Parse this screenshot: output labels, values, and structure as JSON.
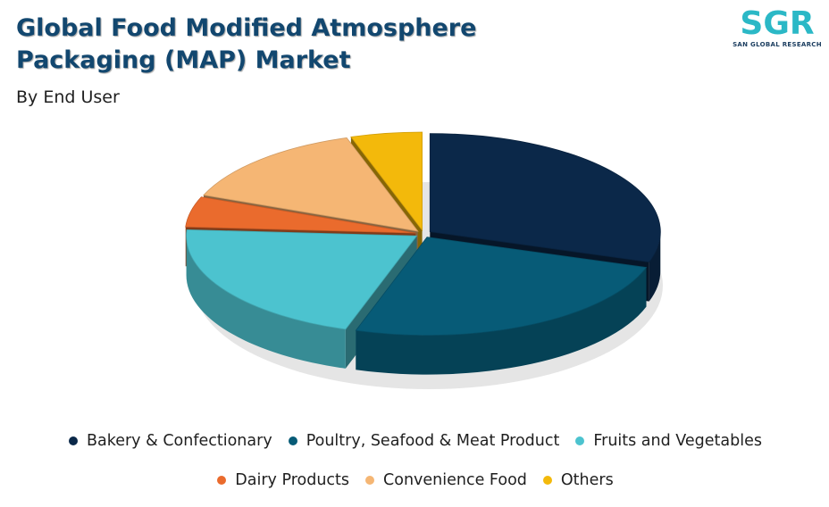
{
  "header": {
    "title": "Global Food Modified Atmosphere Packaging (MAP) Market",
    "subtitle": "By End User"
  },
  "logo": {
    "mark": "SGR",
    "caption": "SAN GLOBAL RESEARCH",
    "colors": [
      "#2bb8c6",
      "#1b3d5f"
    ]
  },
  "chart_data": {
    "type": "pie",
    "subtitle": "By End User",
    "title": "Global Food Modified Atmosphere Packaging (MAP) Market",
    "legend_position": "bottom",
    "style": "3d-exploded",
    "categories": [
      "Bakery & Confectionary",
      "Poultry, Seafood & Meat Product",
      "Fruits and Vegetables",
      "Dairy Products",
      "Convenience Food",
      "Others"
    ],
    "values": [
      30,
      25,
      21,
      5,
      14,
      5
    ],
    "colors": [
      "#0b2849",
      "#075b77",
      "#4cc3cf",
      "#ea6b2d",
      "#f5b674",
      "#f3b90b"
    ]
  }
}
